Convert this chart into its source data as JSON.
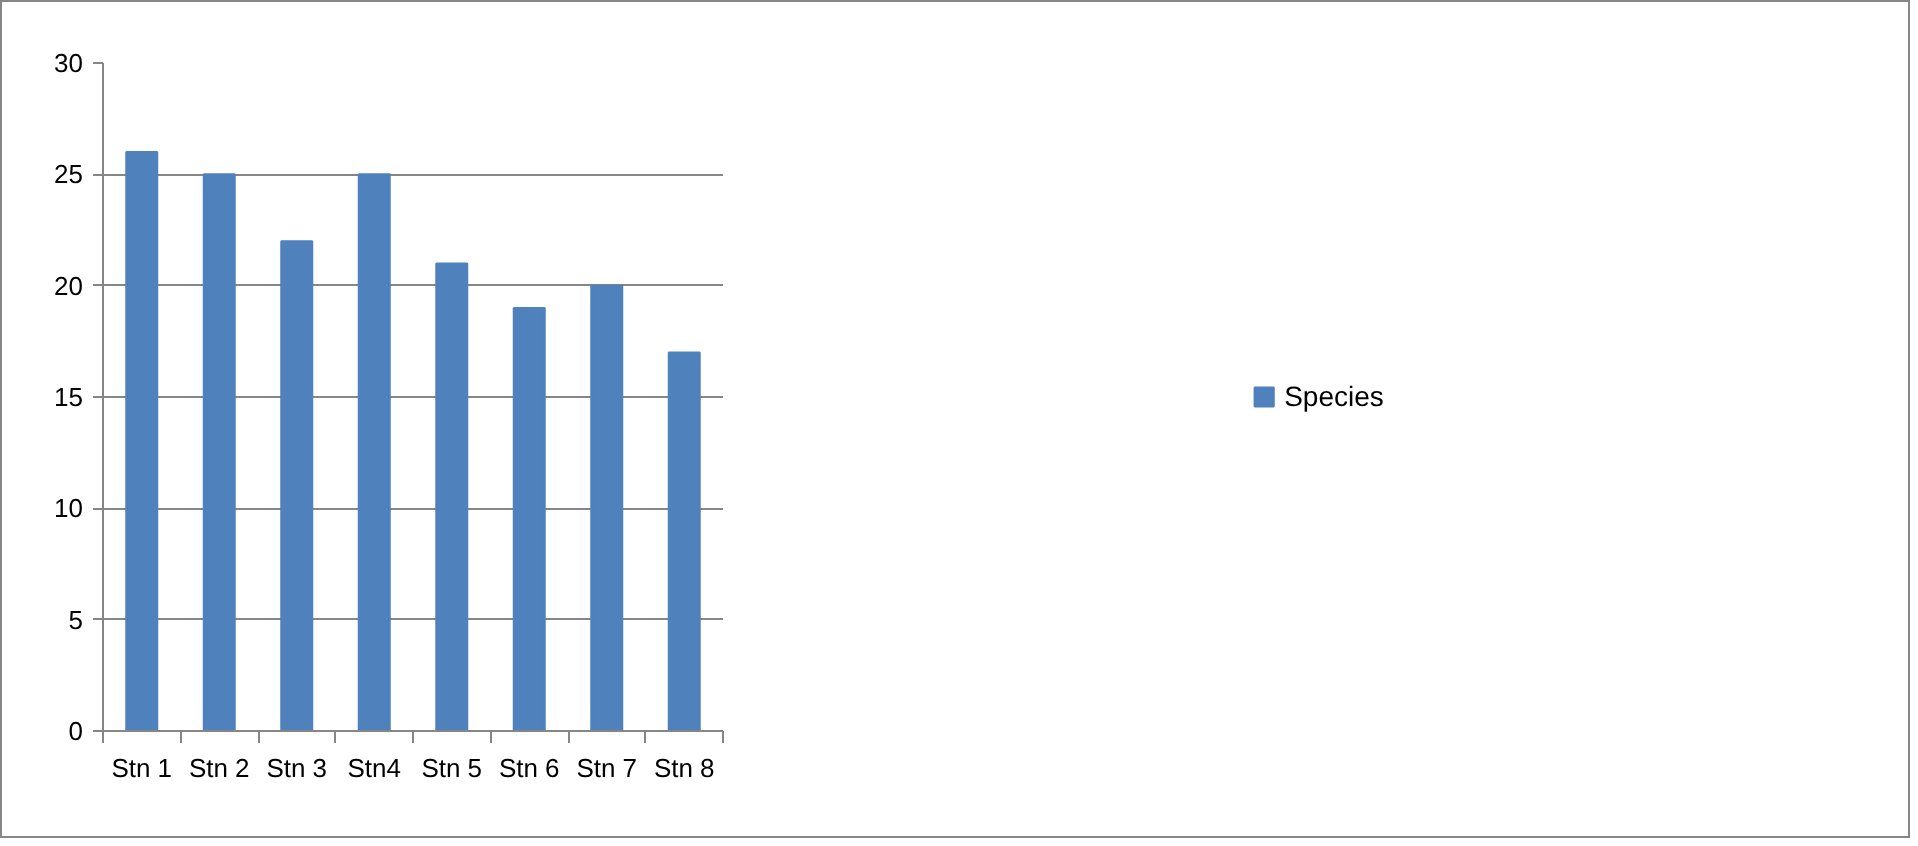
{
  "chart_data": {
    "type": "bar",
    "categories": [
      "Stn 1",
      "Stn 2",
      "Stn 3",
      "Stn4",
      "Stn 5",
      "Stn 6",
      "Stn 7",
      "Stn 8"
    ],
    "series": [
      {
        "name": "Species",
        "color": "#4f81bd",
        "values": [
          26,
          25,
          22,
          25,
          21,
          19,
          20,
          17
        ]
      }
    ],
    "ylim": [
      0,
      30
    ],
    "yticks": [
      0,
      5,
      10,
      15,
      20,
      25,
      30
    ],
    "grid": "y",
    "legend": "right"
  }
}
